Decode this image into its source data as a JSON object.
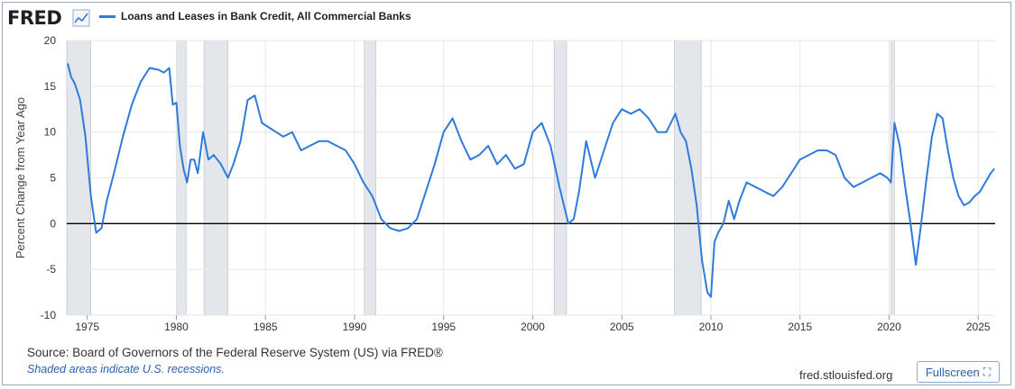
{
  "header": {
    "logo": "FRED",
    "logo_icon": "line-chart-icon"
  },
  "footer": {
    "source": "Source: Board of Governors of the Federal Reserve System (US) via FRED®",
    "note": "Shaded areas indicate U.S. recessions.",
    "site": "fred.stlouisfed.org",
    "fullscreen_label": "Fullscreen",
    "fullscreen_icon": "expand-icon"
  },
  "colors": {
    "line": "#2f7bdc",
    "recession": "#e3e6ea",
    "zero_line": "#000000",
    "grid": "#e6e6e6"
  },
  "chart_data": {
    "type": "line",
    "title": "",
    "ylabel": "Percent Change from Year Ago",
    "xlabel": "",
    "ylim": [
      -10,
      20
    ],
    "xlim": [
      1973.85,
      2025.95
    ],
    "yticks": [
      20,
      15,
      10,
      5,
      0,
      -5,
      -10
    ],
    "xticks": [
      1975,
      1980,
      1985,
      1990,
      1995,
      2000,
      2005,
      2010,
      2015,
      2020,
      2025
    ],
    "grid": true,
    "legend_position": "top-left",
    "recessions": [
      [
        1973.85,
        1975.2
      ],
      [
        1980.0,
        1980.55
      ],
      [
        1981.55,
        1982.9
      ],
      [
        1990.55,
        1991.2
      ],
      [
        2001.2,
        2001.9
      ],
      [
        2007.95,
        2009.45
      ],
      [
        2020.1,
        2020.3
      ]
    ],
    "series": [
      {
        "name": "Loans and Leases in Bank Credit, All Commercial Banks",
        "x": [
          1973.9,
          1974.1,
          1974.3,
          1974.6,
          1974.9,
          1975.2,
          1975.5,
          1975.8,
          1976.1,
          1976.5,
          1977.0,
          1977.5,
          1978.0,
          1978.5,
          1979.0,
          1979.3,
          1979.6,
          1979.8,
          1980.0,
          1980.2,
          1980.4,
          1980.6,
          1980.8,
          1981.0,
          1981.2,
          1981.5,
          1981.8,
          1982.1,
          1982.5,
          1982.9,
          1983.2,
          1983.6,
          1984.0,
          1984.4,
          1984.8,
          1985.2,
          1985.6,
          1986.0,
          1986.5,
          1987.0,
          1987.5,
          1988.0,
          1988.5,
          1989.0,
          1989.5,
          1990.0,
          1990.5,
          1991.0,
          1991.5,
          1992.0,
          1992.5,
          1993.0,
          1993.5,
          1994.0,
          1994.5,
          1995.0,
          1995.5,
          1996.0,
          1996.5,
          1997.0,
          1997.5,
          1998.0,
          1998.5,
          1999.0,
          1999.5,
          2000.0,
          2000.5,
          2001.0,
          2001.5,
          2002.0,
          2002.3,
          2002.6,
          2003.0,
          2003.5,
          2004.0,
          2004.5,
          2005.0,
          2005.5,
          2006.0,
          2006.5,
          2007.0,
          2007.5,
          2008.0,
          2008.3,
          2008.6,
          2008.9,
          2009.2,
          2009.5,
          2009.8,
          2010.0,
          2010.2,
          2010.4,
          2010.7,
          2011.0,
          2011.3,
          2011.6,
          2012.0,
          2012.5,
          2013.0,
          2013.5,
          2014.0,
          2014.5,
          2015.0,
          2015.5,
          2016.0,
          2016.5,
          2017.0,
          2017.5,
          2018.0,
          2018.5,
          2019.0,
          2019.5,
          2019.9,
          2020.1,
          2020.3,
          2020.6,
          2020.9,
          2021.2,
          2021.5,
          2021.8,
          2022.1,
          2022.4,
          2022.7,
          2023.0,
          2023.3,
          2023.6,
          2023.9,
          2024.2,
          2024.5,
          2024.8,
          2025.1,
          2025.4,
          2025.7,
          2025.9
        ],
        "values": [
          17.5,
          16.0,
          15.3,
          13.5,
          9.5,
          3.0,
          -1.0,
          -0.5,
          2.5,
          5.5,
          9.5,
          13.0,
          15.5,
          17.0,
          16.8,
          16.5,
          17.0,
          13.0,
          13.2,
          8.5,
          6.0,
          4.5,
          7.0,
          7.0,
          5.5,
          10.0,
          7.0,
          7.5,
          6.5,
          5.0,
          6.5,
          9.0,
          13.5,
          14.0,
          11.0,
          10.5,
          10.0,
          9.5,
          10.0,
          8.0,
          8.5,
          9.0,
          9.0,
          8.5,
          8.0,
          6.5,
          4.5,
          3.0,
          0.5,
          -0.5,
          -0.8,
          -0.5,
          0.5,
          3.5,
          6.5,
          10.0,
          11.5,
          9.0,
          7.0,
          7.5,
          8.5,
          6.5,
          7.5,
          6.0,
          6.5,
          10.0,
          11.0,
          8.5,
          4.0,
          0.0,
          0.5,
          3.5,
          9.0,
          5.0,
          8.0,
          11.0,
          12.5,
          12.0,
          12.5,
          11.5,
          10.0,
          10.0,
          12.0,
          10.0,
          9.0,
          6.0,
          2.0,
          -4.0,
          -7.5,
          -8.0,
          -2.0,
          -1.0,
          0.0,
          2.5,
          0.5,
          2.5,
          4.5,
          4.0,
          3.5,
          3.0,
          4.0,
          5.5,
          7.0,
          7.5,
          8.0,
          8.0,
          7.5,
          5.0,
          4.0,
          4.5,
          5.0,
          5.5,
          5.0,
          4.5,
          11.0,
          8.5,
          4.0,
          0.0,
          -4.5,
          0.0,
          5.0,
          9.5,
          12.0,
          11.5,
          8.0,
          5.0,
          3.0,
          2.0,
          2.3,
          3.0,
          3.5,
          4.5,
          5.5,
          6.0
        ]
      }
    ]
  }
}
